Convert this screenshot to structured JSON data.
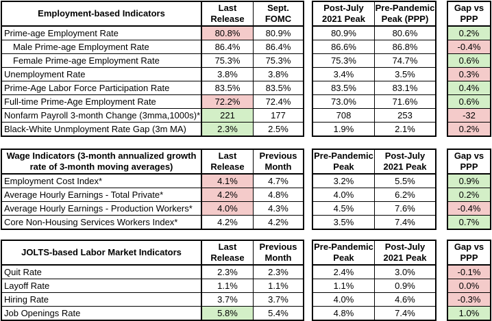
{
  "colors": {
    "pink": "#f4cbca",
    "green": "#d3efc7"
  },
  "tables": [
    {
      "title": "Employment-based Indicators",
      "headers": {
        "c1": "Last\nRelease",
        "c2": "Sept.\nFOMC",
        "p1": "Post-July\n2021 Peak",
        "p2": "Pre-Pandemic\nPeak (PPP)",
        "gap": "Gap vs\nPPP"
      },
      "rows": [
        {
          "label": "Prime-age Employment Rate",
          "values": [
            "80.8%",
            "80.9%",
            "80.9%",
            "80.6%",
            "0.2%"
          ],
          "hl": [
            "pink",
            null,
            null,
            null,
            "green"
          ]
        },
        {
          "label": "Male Prime-age Employment Rate",
          "values": [
            "86.4%",
            "86.4%",
            "86.6%",
            "86.8%",
            "-0.4%"
          ],
          "hl": [
            null,
            null,
            null,
            null,
            "pink"
          ]
        },
        {
          "label": "Female Prime-age Employment Rate",
          "values": [
            "75.3%",
            "75.3%",
            "75.3%",
            "74.7%",
            "0.6%"
          ],
          "hl": [
            null,
            null,
            null,
            null,
            "green"
          ]
        },
        {
          "label": "Unemployment Rate",
          "values": [
            "3.8%",
            "3.8%",
            "3.4%",
            "3.5%",
            "0.3%"
          ],
          "hl": [
            null,
            null,
            null,
            null,
            "pink"
          ]
        },
        {
          "label": "Prime-Age Labor Force Participation Rate",
          "values": [
            "83.5%",
            "83.5%",
            "83.5%",
            "83.1%",
            "0.4%"
          ],
          "hl": [
            null,
            null,
            null,
            null,
            "green"
          ]
        },
        {
          "label": "Full-time Prime-Age Employment Rate",
          "values": [
            "72.2%",
            "72.4%",
            "73.0%",
            "71.6%",
            "0.6%"
          ],
          "hl": [
            "pink",
            null,
            null,
            null,
            "green"
          ]
        },
        {
          "label": "Nonfarm Payroll 3-month Change (3mma,1000s)*",
          "values": [
            "221",
            "177",
            "708",
            "253",
            "-32"
          ],
          "hl": [
            "green",
            null,
            null,
            null,
            "pink"
          ]
        },
        {
          "label": "Black-White Unmployment Rate Gap (3m MA)",
          "values": [
            "2.3%",
            "2.5%",
            "1.9%",
            "2.1%",
            "0.2%"
          ],
          "hl": [
            "green",
            null,
            null,
            null,
            "pink"
          ]
        }
      ]
    },
    {
      "title": "Wage Indicators (3-month annualized growth rate of 3-month moving averages)",
      "headers": {
        "c1": "Last\nRelease",
        "c2": "Previous\nMonth",
        "p1": "Pre-Pandemic\nPeak",
        "p2": "Post-July\n2021 Peak",
        "gap": "Gap vs\nPPP"
      },
      "rows": [
        {
          "label": "Employment Cost Index*",
          "values": [
            "4.1%",
            "4.7%",
            "3.2%",
            "5.5%",
            "0.9%"
          ],
          "hl": [
            "pink",
            null,
            null,
            null,
            "green"
          ]
        },
        {
          "label": "Average Hourly Earnings - Total Private*",
          "values": [
            "4.2%",
            "4.8%",
            "4.0%",
            "6.2%",
            "0.2%"
          ],
          "hl": [
            "pink",
            null,
            null,
            null,
            "green"
          ]
        },
        {
          "label": "Average Hourly Earnings - Production Workers*",
          "values": [
            "4.0%",
            "4.3%",
            "4.5%",
            "7.6%",
            "-0.4%"
          ],
          "hl": [
            "pink",
            null,
            null,
            null,
            "pink"
          ]
        },
        {
          "label": "Core Non-Housing Services Workers Index*",
          "values": [
            "4.2%",
            "4.2%",
            "3.5%",
            "7.4%",
            "0.7%"
          ],
          "hl": [
            null,
            null,
            null,
            null,
            "green"
          ]
        }
      ]
    },
    {
      "title": "JOLTS-based Labor Market Indicators",
      "headers": {
        "c1": "Last\nRelease",
        "c2": "Previous\nMonth",
        "p1": "Pre-Pandemic\nPeak",
        "p2": "Post-July\n2021 Peak",
        "gap": "Gap vs\nPPP"
      },
      "rows": [
        {
          "label": "Quit Rate",
          "values": [
            "2.3%",
            "2.3%",
            "2.4%",
            "3.0%",
            "-0.1%"
          ],
          "hl": [
            null,
            null,
            null,
            null,
            "pink"
          ]
        },
        {
          "label": "Layoff Rate",
          "values": [
            "1.1%",
            "1.1%",
            "1.1%",
            "0.9%",
            "0.0%"
          ],
          "hl": [
            null,
            null,
            null,
            null,
            "pink"
          ]
        },
        {
          "label": "Hiring Rate",
          "values": [
            "3.7%",
            "3.7%",
            "4.0%",
            "4.6%",
            "-0.3%"
          ],
          "hl": [
            null,
            null,
            null,
            null,
            "pink"
          ]
        },
        {
          "label": "Job Openings Rate",
          "values": [
            "5.8%",
            "5.4%",
            "4.8%",
            "7.4%",
            "1.0%"
          ],
          "hl": [
            "green",
            null,
            null,
            null,
            "green"
          ]
        }
      ]
    }
  ]
}
